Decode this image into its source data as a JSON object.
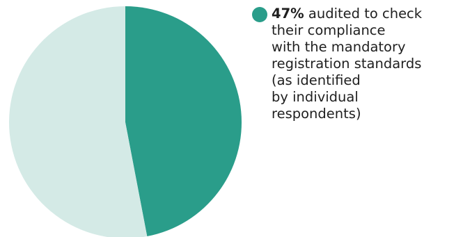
{
  "chart_data": {
    "type": "pie",
    "slices": [
      {
        "label": "47%",
        "value": 47,
        "color": "#2a9d8a"
      },
      {
        "label": "",
        "value": 53,
        "color": "#d4eae6"
      }
    ],
    "legend": {
      "percent": "47%",
      "text": " audited to check\ntheir compliance\nwith the mandatory\nregistration standards\n(as identified\nby individual\nrespondents)",
      "placement": "right"
    }
  }
}
